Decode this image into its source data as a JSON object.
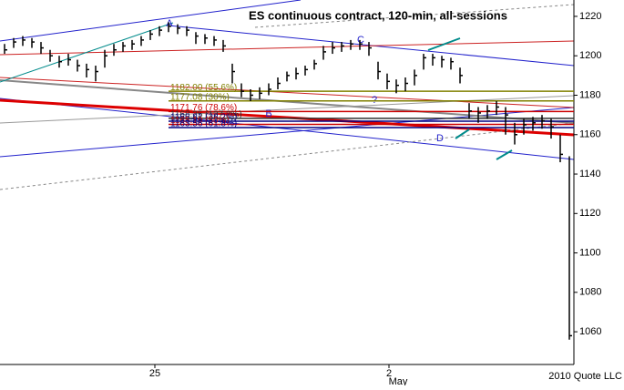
{
  "chart_data": {
    "type": "ohlc",
    "title": "ES continuous contract, 120-min, all-sessions",
    "credit": "2010 Quote LLC",
    "month_label": "May",
    "color": "#000000",
    "high": [
      1206,
      1209,
      1210,
      1209,
      1207,
      1203,
      1200,
      1201,
      1198,
      1196,
      1195,
      1203,
      1206,
      1207,
      1208,
      1210,
      1213,
      1215,
      1217,
      1216,
      1215,
      1212,
      1211,
      1210,
      1208,
      1196,
      1186,
      1183,
      1184,
      1186,
      1189,
      1192,
      1194,
      1195,
      1198,
      1205,
      1207,
      1207,
      1208,
      1208,
      1207,
      1197,
      1191,
      1188,
      1189,
      1193,
      1201,
      1201,
      1200,
      1199,
      1194,
      1176,
      1174,
      1175,
      1177,
      1174,
      1166,
      1168,
      1169,
      1170,
      1168,
      1160,
      1149
    ],
    "low": [
      1201,
      1204,
      1205,
      1204,
      1201,
      1197,
      1194,
      1195,
      1192,
      1189,
      1187,
      1194,
      1200,
      1202,
      1203,
      1205,
      1208,
      1210,
      1212,
      1211,
      1210,
      1206,
      1206,
      1205,
      1202,
      1186,
      1179,
      1177,
      1178,
      1180,
      1183,
      1187,
      1188,
      1190,
      1193,
      1198,
      1201,
      1202,
      1203,
      1203,
      1200,
      1188,
      1183,
      1181,
      1182,
      1185,
      1193,
      1195,
      1194,
      1193,
      1186,
      1168,
      1166,
      1168,
      1170,
      1160,
      1155,
      1160,
      1162,
      1163,
      1158,
      1146,
      1056
    ],
    "close": [
      1203,
      1207,
      1208,
      1207,
      1204,
      1200,
      1197,
      1198,
      1195,
      1193,
      1192,
      1200,
      1203,
      1205,
      1206,
      1208,
      1211,
      1213,
      1215,
      1214,
      1213,
      1210,
      1209,
      1208,
      1205,
      1192,
      1182,
      1180,
      1181,
      1183,
      1186,
      1190,
      1191,
      1193,
      1196,
      1202,
      1204,
      1205,
      1206,
      1206,
      1204,
      1192,
      1187,
      1185,
      1186,
      1190,
      1199,
      1199,
      1198,
      1197,
      1190,
      1172,
      1171,
      1172,
      1174,
      1170,
      1160,
      1165,
      1166,
      1167,
      1164,
      1150,
      1058
    ],
    "xlim": [
      -0.5,
      62.5
    ],
    "xticks": [
      {
        "value": 16.5,
        "label": "25"
      },
      {
        "value": 42.2,
        "label": "2"
      }
    ],
    "ylim": [
      1043.4,
      1228.3
    ],
    "yticks": [
      1060,
      1080,
      1100,
      1120,
      1140,
      1160,
      1180,
      1200,
      1220
    ],
    "levels": [
      {
        "value": 1182,
        "label": "1182.00 (55.6%)",
        "color": "#808000"
      },
      {
        "value": 1177.08,
        "label": "1177.08 (30%)",
        "color": "#808000"
      },
      {
        "value": 1171.76,
        "label": "1171.76 (78.6%)",
        "color": "#cc0000"
      },
      {
        "value": 1168.25,
        "label": "1168.25 (127.2%)",
        "color": "#333333"
      },
      {
        "value": 1166.81,
        "label": "1166.81 (38.2%)",
        "color": "#000080"
      },
      {
        "value": 1165.19,
        "label": "1165.19 (50%)",
        "color": "#cc0000"
      },
      {
        "value": 1163.56,
        "label": "1163.56 (61.8%)",
        "color": "#000080"
      }
    ],
    "annotations": [
      "A",
      "B",
      "C",
      "?",
      "D"
    ]
  }
}
